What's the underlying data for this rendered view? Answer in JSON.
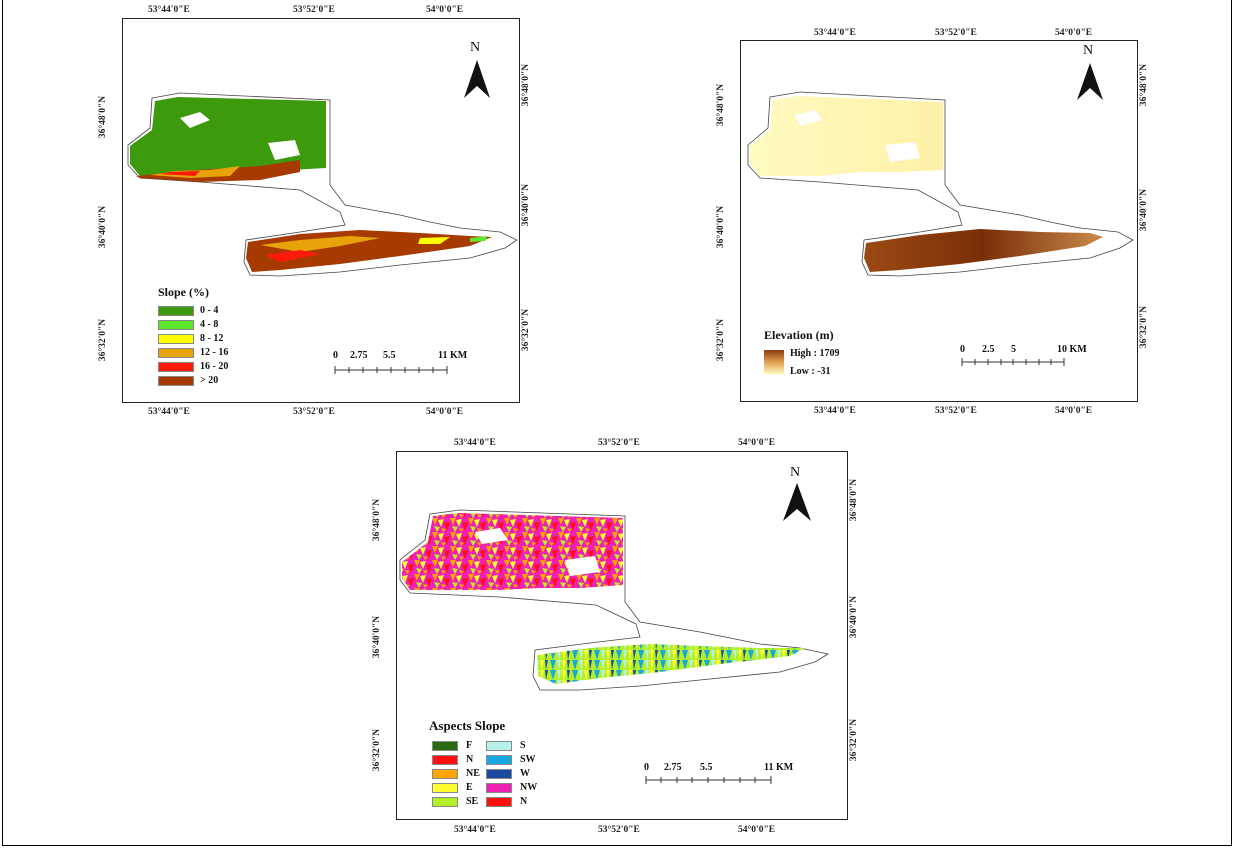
{
  "colors": {
    "slope_0_4": "#3e9a0d",
    "slope_4_8": "#5ee62c",
    "slope_8_12": "#ffff00",
    "slope_12_16": "#e8a20a",
    "slope_16_20": "#ff1a0a",
    "slope_gt20": "#a63a00",
    "elev_high": "#8a3a0c",
    "elev_low": "#fff8c0",
    "aspect_F": "#2a6a10",
    "aspect_N": "#ff1010",
    "aspect_NE": "#ffa500",
    "aspect_E": "#ffff30",
    "aspect_SE": "#b4f028",
    "aspect_S": "#b8f0ea",
    "aspect_SW": "#18a8e0",
    "aspect_W": "#1a4aa0",
    "aspect_NW": "#f020b4",
    "aspect_N2": "#ff1010"
  },
  "slope_map": {
    "top_coords": [
      "53°44'0\"E",
      "53°52'0\"E",
      "54°0'0\"E"
    ],
    "bottom_coords": [
      "53°44'0\"E",
      "53°52'0\"E",
      "54°0'0\"E"
    ],
    "left_coords": [
      "36°48'0\"N",
      "36°40'0\"N",
      "36°32'0\"N"
    ],
    "right_coords": [
      "36°48'0\"N",
      "36°40'0\"N",
      "36°32'0\"N"
    ],
    "north_label": "N",
    "legend_title": "Slope (%)",
    "legend_items": [
      "0 - 4",
      "4 - 8",
      "8 - 12",
      "12 - 16",
      "16 - 20",
      "> 20"
    ],
    "scale_labels": [
      "0",
      "2.75",
      "5.5",
      "11 KM"
    ]
  },
  "elevation_map": {
    "top_coords": [
      "53°44'0\"E",
      "53°52'0\"E",
      "54°0'0\"E"
    ],
    "bottom_coords": [
      "53°44'0\"E",
      "53°52'0\"E",
      "54°0'0\"E"
    ],
    "left_coords": [
      "36°48'0\"N",
      "36°40'0\"N",
      "36°32'0\"N"
    ],
    "right_coords": [
      "36°48'0\"N",
      "36°40'0\"N",
      "36°32'0\"N"
    ],
    "north_label": "N",
    "legend_title": "Elevation (m)",
    "high_label": "High : 1709",
    "low_label": "Low : -31",
    "scale_labels": [
      "0",
      "2.5",
      "5",
      "10 KM"
    ]
  },
  "aspect_map": {
    "top_coords": [
      "53°44'0\"E",
      "53°52'0\"E",
      "54°0'0\"E"
    ],
    "bottom_coords": [
      "53°44'0\"E",
      "53°52'0\"E",
      "54°0'0\"E"
    ],
    "left_coords": [
      "36°48'0\"N",
      "36°40'0\"N",
      "36°32'0\"N"
    ],
    "right_coords": [
      "36°48'0\"N",
      "36°40'0\"N",
      "36°32'0\"N"
    ],
    "north_label": "N",
    "legend_title": "Aspects Slope",
    "legend_col1": [
      "F",
      "N",
      "NE",
      "E",
      "SE"
    ],
    "legend_col2": [
      "S",
      "SW",
      "W",
      "NW",
      "N"
    ],
    "scale_labels": [
      "0",
      "2.75",
      "5.5",
      "11 KM"
    ]
  }
}
